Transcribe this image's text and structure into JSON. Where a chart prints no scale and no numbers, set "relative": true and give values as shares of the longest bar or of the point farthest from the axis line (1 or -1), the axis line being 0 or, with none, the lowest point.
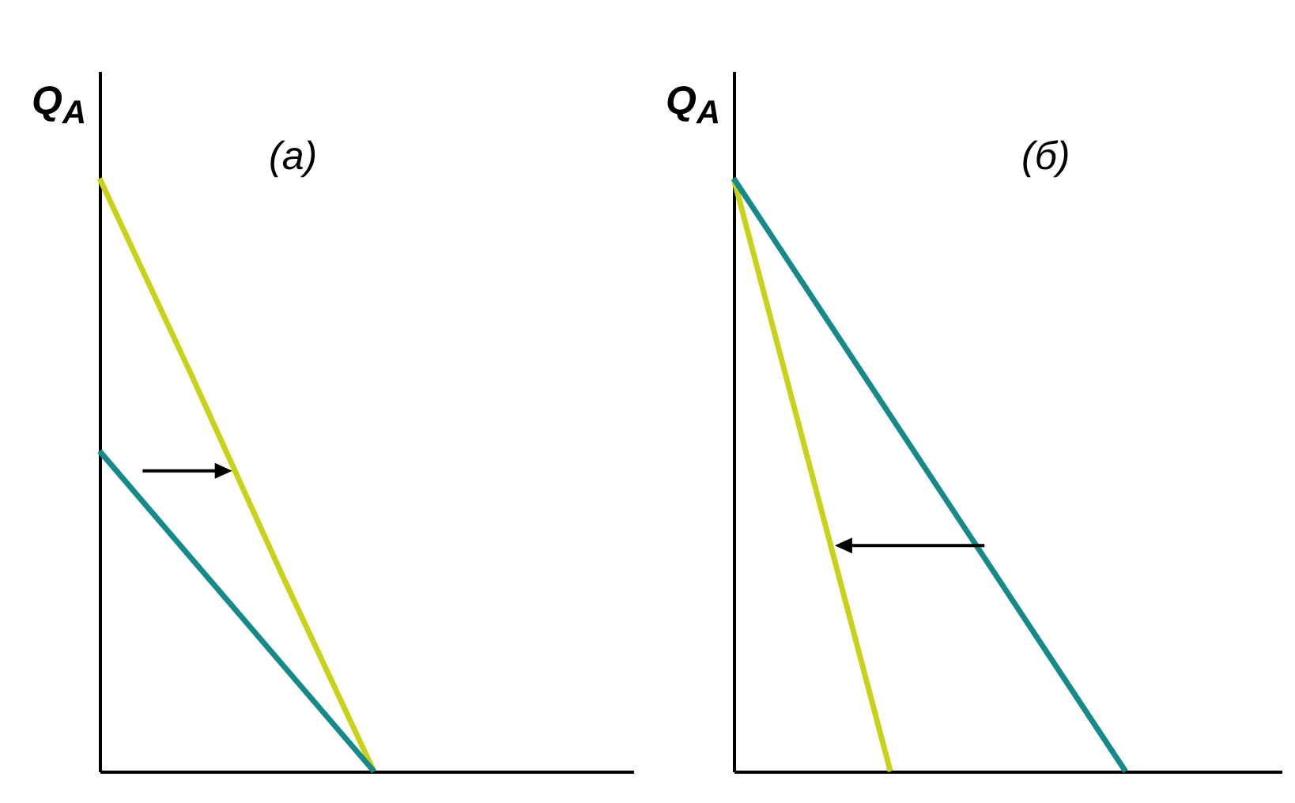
{
  "chart_data": [
    {
      "type": "line",
      "title": "(а)",
      "ylabel": "Q$_{A}$",
      "relative": true,
      "grid": false,
      "marker": "none",
      "categories": [
        null,
        null,
        null,
        null,
        null,
        null,
        null
      ],
      "series": [
        {
          "color": "#c9d118",
          "values": [
            1,
            0.67,
            0.33,
            0,
            null,
            null,
            null
          ]
        },
        {
          "color": "#16898a",
          "values": [
            0.54,
            0.36,
            0.18,
            0,
            null,
            null,
            null
          ]
        }
      ]
    },
    {
      "type": "line",
      "title": "(б)",
      "ylabel": "Q$_{A}$",
      "relative": true,
      "grid": false,
      "marker": "none",
      "categories": [
        null,
        null,
        null,
        null,
        null,
        null,
        null,
        null
      ],
      "series": [
        {
          "color": "#c9d118",
          "values": [
            1,
            0.5,
            0,
            null,
            null,
            null,
            null,
            null
          ]
        },
        {
          "color": "#16898a",
          "values": [
            1,
            0.8,
            0.6,
            0.4,
            0.2,
            0,
            null,
            null
          ]
        }
      ]
    }
  ]
}
